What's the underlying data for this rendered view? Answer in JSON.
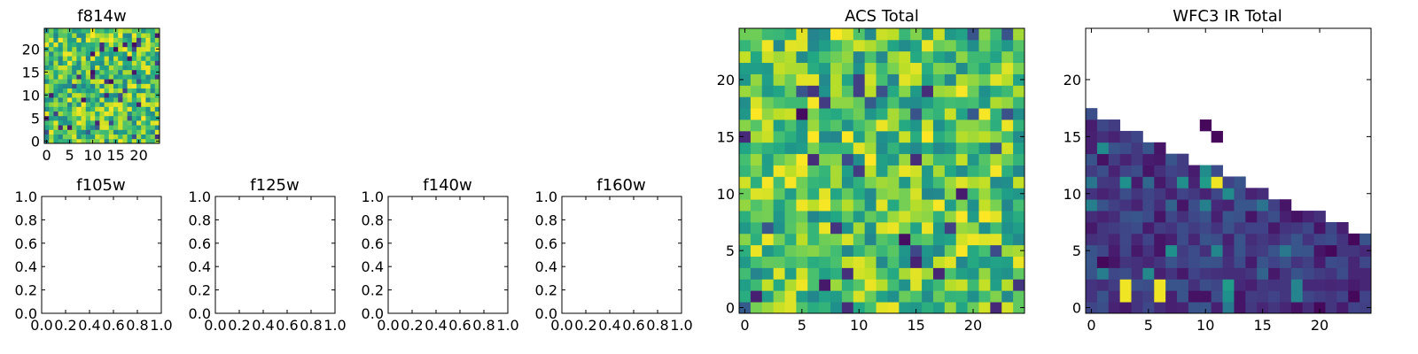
{
  "chart_data": [
    {
      "type": "heatmap",
      "title": "f814w",
      "size": 25,
      "ticks": [
        0,
        5,
        10,
        15,
        20
      ],
      "xlim": [
        -0.5,
        24.5
      ],
      "ylim": [
        -0.5,
        24.5
      ],
      "colormap": "viridis",
      "values": []
    },
    {
      "type": "empty",
      "title": "f105w",
      "ticks": [
        0.0,
        0.2,
        0.4,
        0.6,
        0.8,
        1.0
      ],
      "tick_labels": [
        "0.0",
        "0.2",
        "0.4",
        "0.6",
        "0.8",
        "1.0"
      ],
      "xlim": [
        0,
        1
      ],
      "ylim": [
        0,
        1
      ]
    },
    {
      "type": "empty",
      "title": "f125w",
      "ticks": [
        0.0,
        0.2,
        0.4,
        0.6,
        0.8,
        1.0
      ],
      "tick_labels": [
        "0.0",
        "0.2",
        "0.4",
        "0.6",
        "0.8",
        "1.0"
      ],
      "xlim": [
        0,
        1
      ],
      "ylim": [
        0,
        1
      ]
    },
    {
      "type": "empty",
      "title": "f140w",
      "ticks": [
        0.0,
        0.2,
        0.4,
        0.6,
        0.8,
        1.0
      ],
      "tick_labels": [
        "0.0",
        "0.2",
        "0.4",
        "0.6",
        "0.8",
        "1.0"
      ],
      "xlim": [
        0,
        1
      ],
      "ylim": [
        0,
        1
      ]
    },
    {
      "type": "empty",
      "title": "f160w",
      "ticks": [
        0.0,
        0.2,
        0.4,
        0.6,
        0.8,
        1.0
      ],
      "tick_labels": [
        "0.0",
        "0.2",
        "0.4",
        "0.6",
        "0.8",
        "1.0"
      ],
      "xlim": [
        0,
        1
      ],
      "ylim": [
        0,
        1
      ]
    },
    {
      "type": "heatmap",
      "title": "ACS Total",
      "size": 25,
      "ticks": [
        0,
        5,
        10,
        15,
        20
      ],
      "xlim": [
        -0.5,
        24.5
      ],
      "ylim": [
        -0.5,
        24.5
      ],
      "colormap": "viridis",
      "values": []
    },
    {
      "type": "heatmap",
      "title": "WFC3 IR Total",
      "size": 25,
      "ticks": [
        0,
        5,
        10,
        15,
        20
      ],
      "xlim": [
        -0.5,
        24.5
      ],
      "ylim": [
        -0.5,
        24.5
      ],
      "colormap": "viridis",
      "values": []
    }
  ]
}
